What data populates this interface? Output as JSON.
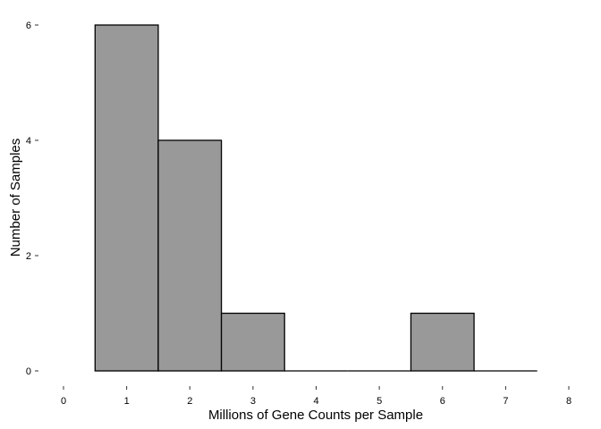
{
  "chart_data": {
    "type": "bar",
    "title": "",
    "xlabel": "Millions of Gene Counts per Sample",
    "ylabel": "Number of Samples",
    "xlim": [
      0,
      8
    ],
    "ylim": [
      0,
      6
    ],
    "x_ticks": [
      "0",
      "1",
      "2",
      "3",
      "4",
      "5",
      "6",
      "7",
      "8"
    ],
    "y_ticks": [
      "0",
      "2",
      "4",
      "6"
    ],
    "bin_width": 1,
    "bins": [
      {
        "center": 1,
        "count": 6
      },
      {
        "center": 2,
        "count": 4
      },
      {
        "center": 3,
        "count": 1
      },
      {
        "center": 4,
        "count": 0
      },
      {
        "center": 5,
        "count": 0
      },
      {
        "center": 6,
        "count": 1
      },
      {
        "center": 7,
        "count": 0
      }
    ],
    "bar_fill": "#999999",
    "bar_outline": "#000000",
    "grid": false
  }
}
